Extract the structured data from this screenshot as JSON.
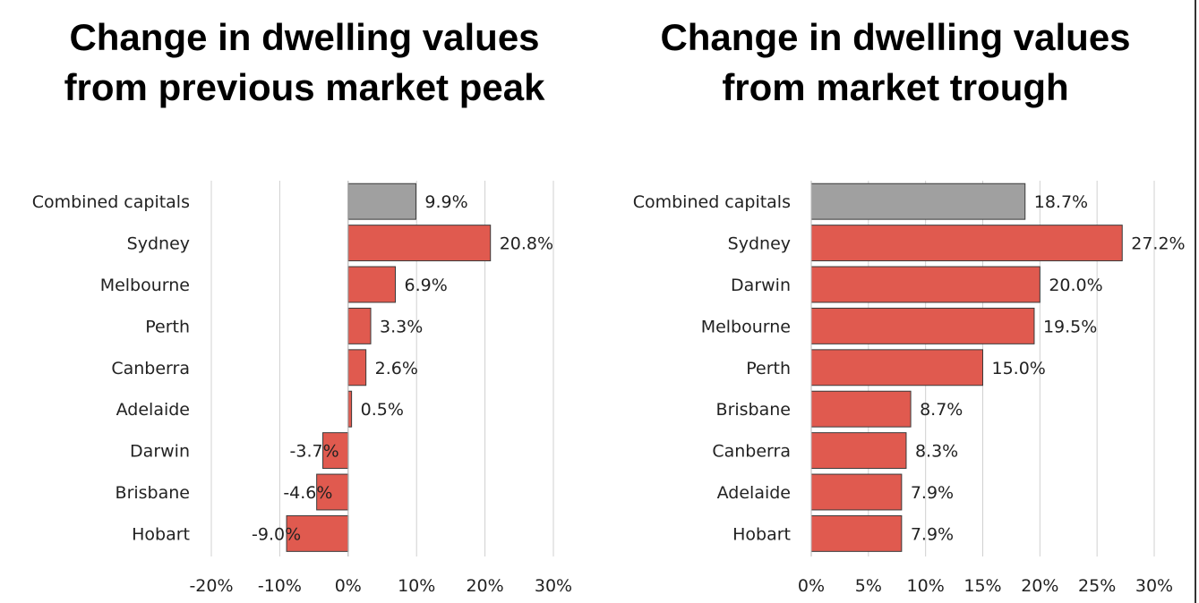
{
  "titles": {
    "left": [
      "Change in dwelling values",
      "from previous market peak"
    ],
    "right": [
      "Change in dwelling values",
      "from market trough"
    ]
  },
  "colors": {
    "highlight": "#a0a0a0",
    "bar": "#e05a4f",
    "grid": "#d0d0d0",
    "outline": "#3a3a3a"
  },
  "chart_data": [
    {
      "type": "bar",
      "orientation": "horizontal",
      "title": "Change in dwelling values from previous market peak",
      "categories": [
        "Combined capitals",
        "Sydney",
        "Melbourne",
        "Perth",
        "Canberra",
        "Adelaide",
        "Darwin",
        "Brisbane",
        "Hobart"
      ],
      "values": [
        9.9,
        20.8,
        6.9,
        3.3,
        2.6,
        0.5,
        -3.7,
        -4.6,
        -9.0
      ],
      "labels": [
        "9.9%",
        "20.8%",
        "6.9%",
        "3.3%",
        "2.6%",
        "0.5%",
        "-3.7%",
        "-4.6%",
        "-9.0%"
      ],
      "xlim": [
        -20,
        30
      ],
      "ticks": [
        -20,
        -10,
        0,
        10,
        20,
        30
      ],
      "tick_labels": [
        "-20%",
        "-10%",
        "0%",
        "10%",
        "20%",
        "30%"
      ],
      "grid": true,
      "highlight_category": "Combined capitals"
    },
    {
      "type": "bar",
      "orientation": "horizontal",
      "title": "Change in dwelling values from market trough",
      "categories": [
        "Combined capitals",
        "Sydney",
        "Darwin",
        "Melbourne",
        "Perth",
        "Brisbane",
        "Canberra",
        "Adelaide",
        "Hobart"
      ],
      "values": [
        18.7,
        27.2,
        20.0,
        19.5,
        15.0,
        8.7,
        8.3,
        7.9,
        7.9
      ],
      "labels": [
        "18.7%",
        "27.2%",
        "20.0%",
        "19.5%",
        "15.0%",
        "8.7%",
        "8.3%",
        "7.9%",
        "7.9%"
      ],
      "xlim": [
        0,
        30
      ],
      "ticks": [
        0,
        5,
        10,
        15,
        20,
        25,
        30
      ],
      "tick_labels": [
        "0%",
        "5%",
        "10%",
        "15%",
        "20%",
        "25%",
        "30%"
      ],
      "grid": true,
      "highlight_category": "Combined capitals"
    }
  ]
}
